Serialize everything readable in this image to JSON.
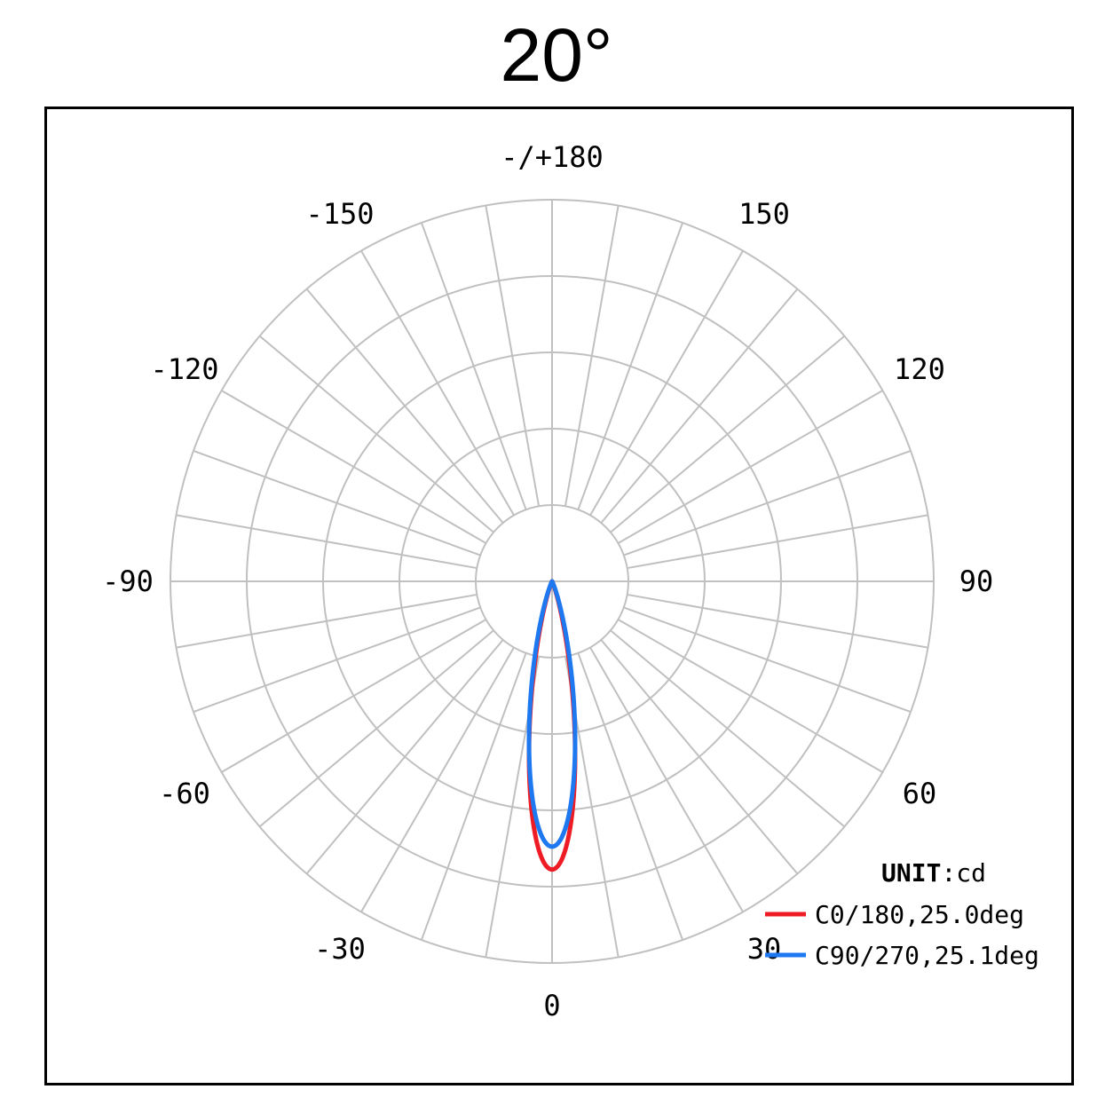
{
  "chart_data": {
    "type": "polar",
    "title": "20°",
    "unit_label": "UNIT",
    "unit_value": ":cd",
    "angle_labels": [
      {
        "angle": 180,
        "text": "-/+180"
      },
      {
        "angle": 150,
        "text": "150"
      },
      {
        "angle": -150,
        "text": "-150"
      },
      {
        "angle": 120,
        "text": "120"
      },
      {
        "angle": -120,
        "text": "-120"
      },
      {
        "angle": 90,
        "text": "90"
      },
      {
        "angle": -90,
        "text": "-90"
      },
      {
        "angle": 60,
        "text": "60"
      },
      {
        "angle": -60,
        "text": "-60"
      },
      {
        "angle": 30,
        "text": "30"
      },
      {
        "angle": -30,
        "text": "-30"
      },
      {
        "angle": 0,
        "text": "0"
      }
    ],
    "grid": {
      "rings": 5,
      "spoke_step_deg": 10,
      "spoke_step_inner_deg": 15
    },
    "series": [
      {
        "name": "C0/180,25.0deg",
        "color": "#ee1c25",
        "beam_half_angle_deg": 12.5,
        "peak_relative": 0.755,
        "max_spread_angle_deg": 14.5,
        "width_angle_deg": 11.5
      },
      {
        "name": "C90/270,25.1deg",
        "color": "#1e78f0",
        "beam_half_angle_deg": 12.55,
        "peak_relative": 0.695,
        "max_spread_angle_deg": 15.0,
        "width_angle_deg": 12.5
      }
    ]
  }
}
